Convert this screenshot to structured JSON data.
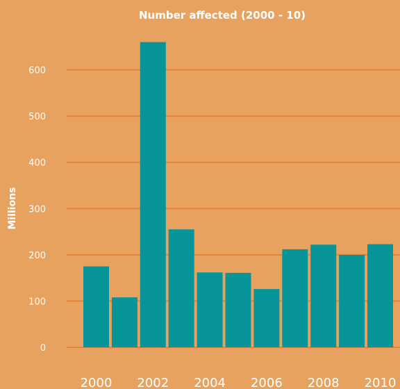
{
  "chart_data": {
    "type": "bar",
    "title": "Number affected (2000 - 10)",
    "ylabel": "Millions",
    "xlabel": "",
    "categories": [
      "2000",
      "2001",
      "2002",
      "2003",
      "2004",
      "2005",
      "2006",
      "2007",
      "2008",
      "2009",
      "2010"
    ],
    "x_tick_labels": [
      "2000",
      "2002",
      "2004",
      "2006",
      "2008",
      "2010"
    ],
    "values": [
      175,
      108,
      660,
      255,
      162,
      161,
      126,
      212,
      222,
      200,
      223
    ],
    "yticks": [
      0,
      100,
      200,
      300,
      400,
      500,
      600
    ],
    "ylim": [
      0,
      680
    ],
    "grid": true,
    "legend": "none"
  },
  "colors": {
    "background": "#E8A25F",
    "bar": "#08959A",
    "gridline": "#E0843C",
    "text": "#FFFFFF"
  }
}
